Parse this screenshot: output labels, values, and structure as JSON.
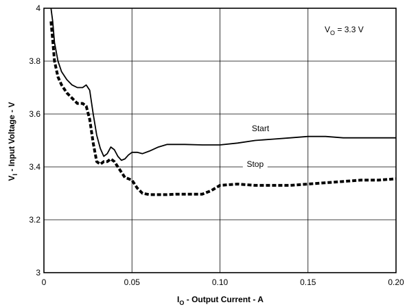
{
  "chart_data": {
    "type": "line",
    "title": "",
    "xlabel": {
      "main": "I",
      "sub": "O",
      "rest": " - Output Current - A"
    },
    "ylabel": {
      "main": "V",
      "sub": "I",
      "rest": " - Input Voltage - V"
    },
    "xlim": [
      0,
      0.2
    ],
    "ylim": [
      3.0,
      4.0
    ],
    "grid": true,
    "x_ticks": [
      0,
      0.05,
      0.1,
      0.15,
      0.2
    ],
    "x_tick_labels": [
      "0",
      "0.05",
      "0.10",
      "0.15",
      "0.20"
    ],
    "y_ticks": [
      3.0,
      3.2,
      3.4,
      3.6,
      3.8,
      4.0
    ],
    "y_tick_labels": [
      "3",
      "3.2",
      "3.4",
      "3.6",
      "3.8",
      "4"
    ],
    "annotation": {
      "main": "V",
      "sub": "O",
      "rest": " = 3.3 V"
    },
    "series": [
      {
        "name": "Start",
        "style": "solid",
        "x": [
          0.004,
          0.005,
          0.006,
          0.008,
          0.01,
          0.013,
          0.016,
          0.019,
          0.022,
          0.024,
          0.026,
          0.028,
          0.03,
          0.032,
          0.034,
          0.036,
          0.038,
          0.04,
          0.042,
          0.044,
          0.046,
          0.048,
          0.05,
          0.053,
          0.056,
          0.06,
          0.065,
          0.07,
          0.075,
          0.08,
          0.09,
          0.1,
          0.11,
          0.12,
          0.13,
          0.14,
          0.15,
          0.16,
          0.17,
          0.18,
          0.19,
          0.2
        ],
        "y": [
          4.0,
          3.95,
          3.87,
          3.8,
          3.76,
          3.73,
          3.71,
          3.7,
          3.7,
          3.71,
          3.69,
          3.6,
          3.52,
          3.47,
          3.44,
          3.45,
          3.475,
          3.465,
          3.44,
          3.425,
          3.43,
          3.445,
          3.455,
          3.455,
          3.45,
          3.46,
          3.475,
          3.485,
          3.485,
          3.485,
          3.483,
          3.483,
          3.49,
          3.5,
          3.505,
          3.51,
          3.515,
          3.515,
          3.51,
          3.51,
          3.51,
          3.51
        ]
      },
      {
        "name": "Stop",
        "style": "dashed",
        "x": [
          0.004,
          0.005,
          0.006,
          0.008,
          0.01,
          0.013,
          0.016,
          0.019,
          0.022,
          0.024,
          0.026,
          0.028,
          0.03,
          0.032,
          0.034,
          0.036,
          0.038,
          0.04,
          0.042,
          0.044,
          0.046,
          0.048,
          0.05,
          0.053,
          0.056,
          0.06,
          0.065,
          0.07,
          0.075,
          0.08,
          0.085,
          0.09,
          0.095,
          0.1,
          0.11,
          0.12,
          0.13,
          0.14,
          0.15,
          0.16,
          0.17,
          0.18,
          0.19,
          0.2
        ],
        "y": [
          3.95,
          3.88,
          3.8,
          3.74,
          3.71,
          3.68,
          3.66,
          3.64,
          3.64,
          3.63,
          3.58,
          3.49,
          3.42,
          3.41,
          3.42,
          3.42,
          3.43,
          3.42,
          3.4,
          3.38,
          3.36,
          3.355,
          3.35,
          3.32,
          3.3,
          3.295,
          3.295,
          3.295,
          3.297,
          3.297,
          3.297,
          3.297,
          3.31,
          3.33,
          3.335,
          3.33,
          3.33,
          3.33,
          3.335,
          3.34,
          3.345,
          3.35,
          3.35,
          3.355
        ]
      }
    ],
    "series_labels": [
      {
        "name": "Start",
        "x": 0.123,
        "y": 3.535
      },
      {
        "name": "Stop",
        "x": 0.12,
        "y": 3.4
      }
    ]
  }
}
